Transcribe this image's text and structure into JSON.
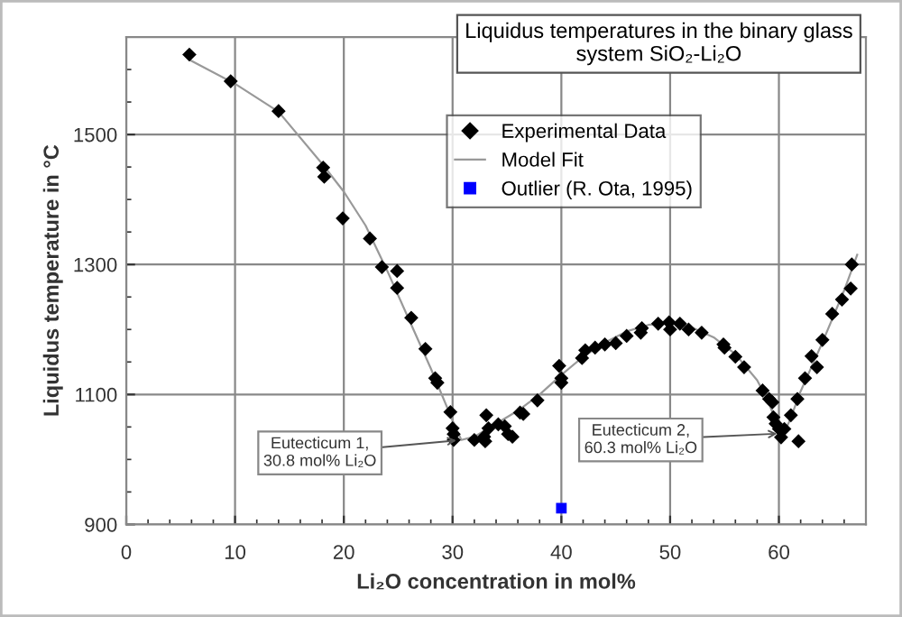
{
  "chart_data": {
    "type": "scatter",
    "title": "Liquidus temperatures in the binary glass\nsystem SiO₂-Li₂O",
    "xlabel": "Li₂O concentration in mol%",
    "ylabel": "Liquidus temperature in °C",
    "xlim": [
      0,
      68
    ],
    "xticks": [
      0,
      10,
      20,
      30,
      40,
      50,
      60
    ],
    "ylim": [
      900,
      1650
    ],
    "yticks": [
      900,
      1100,
      1300,
      1500
    ],
    "grid": true,
    "legend": "top",
    "series": [
      {
        "name": "Experimental Data",
        "marker": "diamond",
        "color": "#000000",
        "x": [
          5.8,
          9.6,
          14.0,
          18.1,
          18.2,
          19.9,
          22.4,
          23.5,
          24.9,
          24.9,
          26.2,
          27.5,
          28.4,
          28.6,
          29.8,
          30.0,
          30.1,
          30.1,
          32.0,
          32.9,
          33.0,
          33.1,
          33.3,
          34.2,
          34.8,
          35.1,
          35.5,
          36.2,
          36.5,
          37.8,
          39.8,
          40.0,
          40.0,
          41.9,
          42.2,
          43.1,
          44.0,
          45.0,
          46.0,
          47.3,
          47.4,
          48.9,
          49.9,
          50.0,
          50.9,
          51.7,
          52.9,
          54.9,
          55.0,
          56.0,
          56.8,
          58.5,
          59.1,
          59.4,
          59.5,
          59.7,
          60.0,
          60.2,
          60.5,
          61.1,
          61.8,
          61.7,
          62.4,
          63.0,
          63.5,
          64.0,
          64.9,
          65.8,
          66.6,
          66.7
        ],
        "values": [
          1623,
          1582,
          1536,
          1449,
          1435,
          1371,
          1340,
          1296,
          1290,
          1264,
          1218,
          1170,
          1125,
          1118,
          1073,
          1048,
          1039,
          1030,
          1030,
          1035,
          1028,
          1068,
          1048,
          1054,
          1051,
          1039,
          1035,
          1072,
          1070,
          1091,
          1144,
          1125,
          1118,
          1156,
          1168,
          1172,
          1177,
          1179,
          1190,
          1195,
          1202,
          1209,
          1211,
          1200,
          1209,
          1200,
          1195,
          1177,
          1172,
          1158,
          1142,
          1106,
          1093,
          1088,
          1065,
          1055,
          1047,
          1034,
          1047,
          1068,
          1028,
          1093,
          1125,
          1159,
          1142,
          1184,
          1224,
          1246,
          1263,
          1300
        ]
      },
      {
        "name": "Model Fit",
        "type": "line",
        "marker": "none",
        "color": "#999999",
        "x": [
          5.8,
          10,
          14,
          18,
          20,
          22,
          24,
          26,
          28,
          30,
          30.8,
          32,
          34,
          36,
          38,
          40,
          42,
          44,
          46,
          48,
          50,
          52,
          54,
          56,
          58,
          59,
          60.3,
          61,
          62,
          64,
          66,
          67.2
        ],
        "values": [
          1615,
          1578,
          1535,
          1455,
          1412,
          1360,
          1290,
          1215,
          1140,
          1060,
          1030,
          1035,
          1055,
          1075,
          1100,
          1130,
          1158,
          1180,
          1197,
          1207,
          1210,
          1203,
          1188,
          1162,
          1122,
          1090,
          1035,
          1060,
          1105,
          1180,
          1260,
          1315
        ]
      },
      {
        "name": "Outlier (R. Ota, 1995)",
        "marker": "square",
        "color": "#0000ff",
        "x": [
          40
        ],
        "values": [
          925
        ]
      }
    ],
    "annotations": [
      {
        "text": "Eutecticum 1,\n30.8 mol% Li₂O",
        "x": 30.8,
        "y": 1030
      },
      {
        "text": "Eutecticum 2,\n60.3 mol% Li₂O",
        "x": 60.3,
        "y": 1040
      }
    ]
  }
}
